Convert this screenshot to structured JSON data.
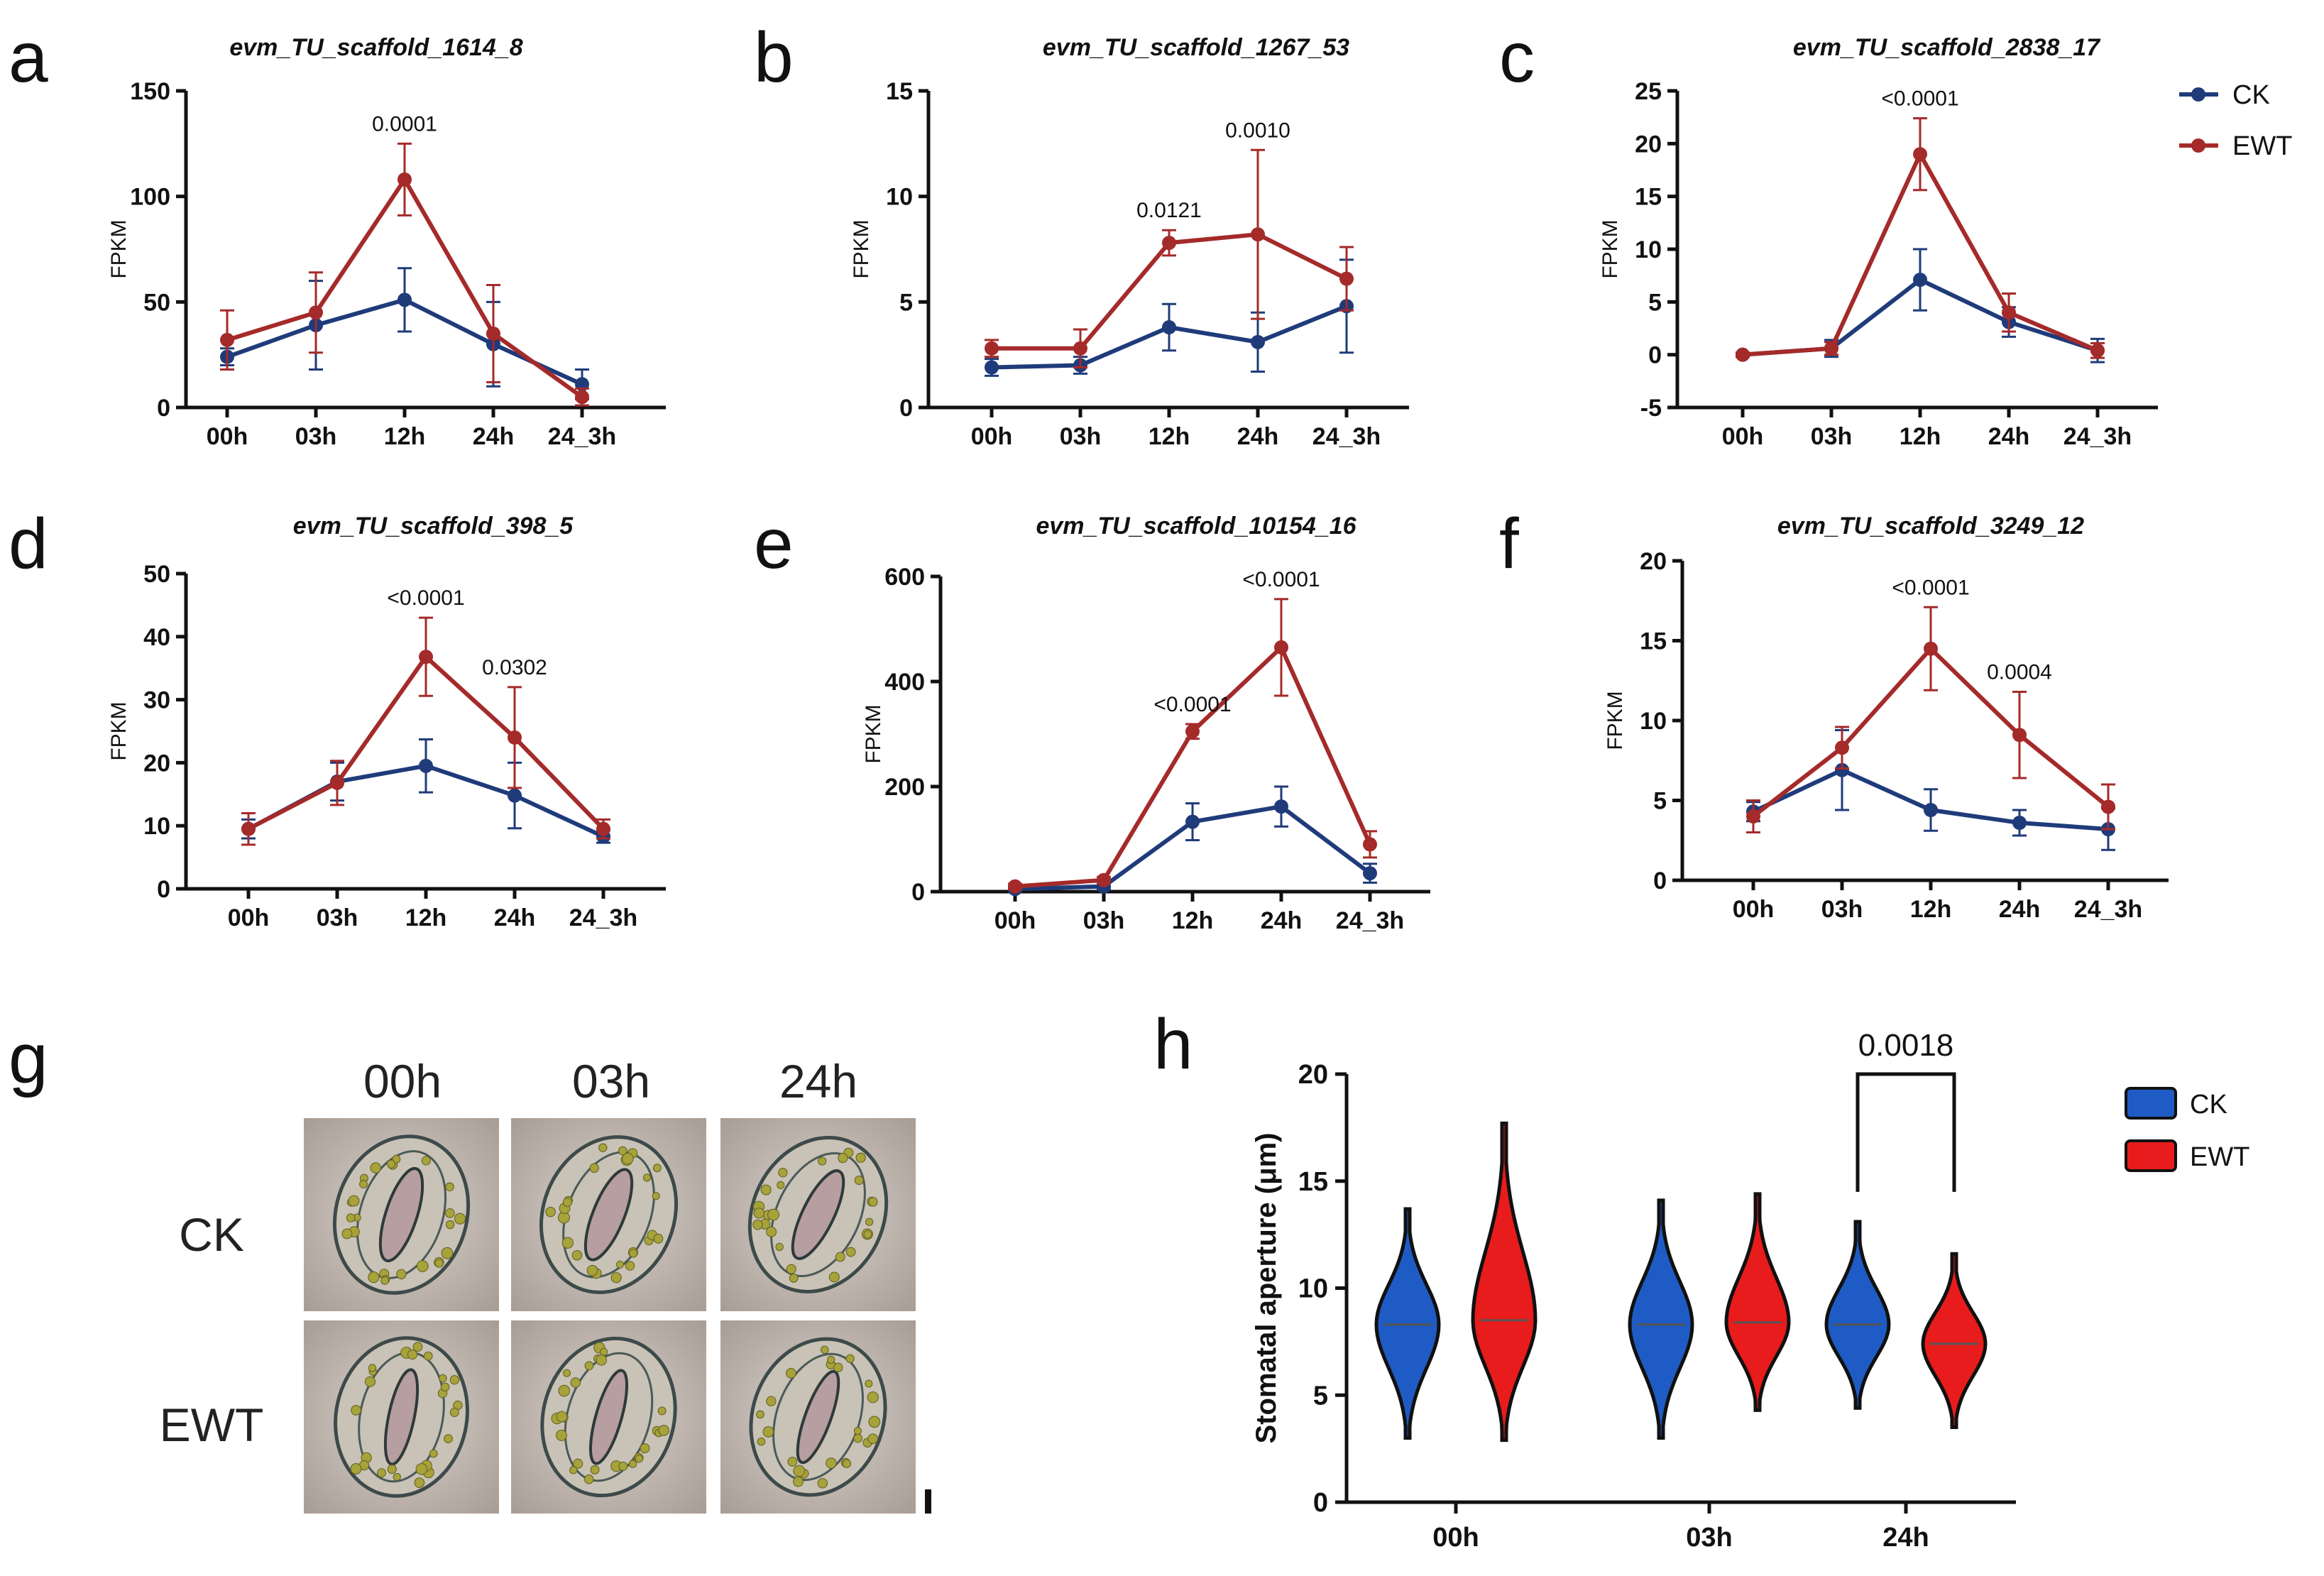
{
  "colors": {
    "ck": "#1f3b7a",
    "ewt": "#a52a2a",
    "violin_ck": "#1f5bc4",
    "violin_ewt": "#e81c1c"
  },
  "legend_top": [
    {
      "label": "CK"
    },
    {
      "label": "EWT"
    }
  ],
  "legend_h": [
    {
      "label": "CK"
    },
    {
      "label": "EWT"
    }
  ],
  "chart_data": [
    {
      "panel": "a",
      "type": "line",
      "title": "evm_TU_scaffold_1614_8",
      "ylabel": "FPKM",
      "categories": [
        "00h",
        "03h",
        "12h",
        "24h",
        "24_3h"
      ],
      "ylim": [
        0,
        150
      ],
      "yticks": [
        "0",
        "50",
        "100",
        "150"
      ],
      "series": [
        {
          "name": "CK",
          "values": [
            24,
            39,
            51,
            30,
            11
          ],
          "err": [
            4,
            21,
            15,
            20,
            7
          ]
        },
        {
          "name": "EWT",
          "values": [
            32,
            45,
            108,
            35,
            5
          ],
          "err": [
            14,
            19,
            17,
            23,
            4
          ]
        }
      ],
      "annotations": [
        {
          "index": 2,
          "text": "0.0001"
        }
      ]
    },
    {
      "panel": "b",
      "type": "line",
      "title": "evm_TU_scaffold_1267_53",
      "ylabel": "FPKM",
      "categories": [
        "00h",
        "03h",
        "12h",
        "24h",
        "24_3h"
      ],
      "ylim": [
        0,
        15
      ],
      "yticks": [
        "0",
        "5",
        "10",
        "15"
      ],
      "series": [
        {
          "name": "CK",
          "values": [
            1.9,
            2.0,
            3.8,
            3.1,
            4.8
          ],
          "err": [
            0.4,
            0.4,
            1.1,
            1.4,
            2.2
          ]
        },
        {
          "name": "EWT",
          "values": [
            2.8,
            2.8,
            7.8,
            8.2,
            6.1
          ],
          "err": [
            0.4,
            0.9,
            0.6,
            4.0,
            1.5
          ]
        }
      ],
      "annotations": [
        {
          "index": 2,
          "text": "0.0121"
        },
        {
          "index": 3,
          "text": "0.0010"
        }
      ]
    },
    {
      "panel": "c",
      "type": "line",
      "title": "evm_TU_scaffold_2838_17",
      "ylabel": "FPKM",
      "categories": [
        "00h",
        "03h",
        "12h",
        "24h",
        "24_3h"
      ],
      "ylim": [
        -5,
        25
      ],
      "yticks": [
        "-5",
        "0",
        "5",
        "10",
        "15",
        "20",
        "25"
      ],
      "series": [
        {
          "name": "CK",
          "values": [
            0.0,
            0.6,
            7.1,
            3.1,
            0.4
          ],
          "err": [
            0.2,
            0.8,
            2.9,
            1.4,
            1.1
          ]
        },
        {
          "name": "EWT",
          "values": [
            0.0,
            0.6,
            19.0,
            4.0,
            0.4
          ],
          "err": [
            0.2,
            0.6,
            3.4,
            1.8,
            0.7
          ]
        }
      ],
      "annotations": [
        {
          "index": 2,
          "text": "<0.0001"
        }
      ]
    },
    {
      "panel": "d",
      "type": "line",
      "title": "evm_TU_scaffold_398_5",
      "ylabel": "FPKM",
      "categories": [
        "00h",
        "03h",
        "12h",
        "24h",
        "24_3h"
      ],
      "ylim": [
        0,
        50
      ],
      "yticks": [
        "0",
        "10",
        "20",
        "30",
        "40",
        "50"
      ],
      "series": [
        {
          "name": "CK",
          "values": [
            9.5,
            17.0,
            19.5,
            14.8,
            8.3
          ],
          "err": [
            1.5,
            3.0,
            4.2,
            5.2,
            1.0
          ]
        },
        {
          "name": "EWT",
          "values": [
            9.5,
            16.8,
            36.8,
            24.0,
            9.5
          ],
          "err": [
            2.5,
            3.5,
            6.2,
            8.0,
            1.5
          ]
        }
      ],
      "annotations": [
        {
          "index": 2,
          "text": "<0.0001"
        },
        {
          "index": 3,
          "text": "0.0302"
        }
      ]
    },
    {
      "panel": "e",
      "type": "line",
      "title": "evm_TU_scaffold_10154_16",
      "ylabel": "FPKM",
      "categories": [
        "00h",
        "03h",
        "12h",
        "24h",
        "24_3h"
      ],
      "ylim": [
        0,
        600
      ],
      "yticks": [
        "0",
        "200",
        "400",
        "600"
      ],
      "series": [
        {
          "name": "CK",
          "values": [
            5,
            10,
            133,
            162,
            35
          ],
          "err": [
            4,
            6,
            35,
            38,
            18
          ]
        },
        {
          "name": "EWT",
          "values": [
            10,
            22,
            305,
            465,
            90
          ],
          "err": [
            5,
            6,
            14,
            92,
            25
          ]
        }
      ],
      "annotations": [
        {
          "index": 2,
          "text": "<0.0001"
        },
        {
          "index": 3,
          "text": "<0.0001"
        }
      ]
    },
    {
      "panel": "f",
      "type": "line",
      "title": "evm_TU_scaffold_3249_12",
      "ylabel": "FPKM",
      "categories": [
        "00h",
        "03h",
        "12h",
        "24h",
        "24_3h"
      ],
      "ylim": [
        0,
        20
      ],
      "yticks": [
        "0",
        "5",
        "10",
        "15",
        "20"
      ],
      "series": [
        {
          "name": "CK",
          "values": [
            4.3,
            6.9,
            4.4,
            3.6,
            3.2
          ],
          "err": [
            0.6,
            2.5,
            1.3,
            0.8,
            1.3
          ]
        },
        {
          "name": "EWT",
          "values": [
            4.0,
            8.3,
            14.5,
            9.1,
            4.6
          ],
          "err": [
            1.0,
            1.3,
            2.6,
            2.7,
            1.4
          ]
        }
      ],
      "annotations": [
        {
          "index": 2,
          "text": "<0.0001"
        },
        {
          "index": 3,
          "text": "0.0004"
        }
      ]
    },
    {
      "panel": "h",
      "type": "violin",
      "title": "",
      "ylabel": "Stomatal aperture (μm)",
      "categories": [
        "00h",
        "03h",
        "24h"
      ],
      "ylim": [
        0,
        20
      ],
      "yticks": [
        "0",
        "5",
        "10",
        "15",
        "20"
      ],
      "series": [
        {
          "name": "CK",
          "median": [
            8.3,
            8.3,
            8.3
          ],
          "min": [
            3.0,
            3.0,
            4.4
          ],
          "max": [
            13.7,
            14.1,
            13.1
          ]
        },
        {
          "name": "EWT",
          "median": [
            8.5,
            8.4,
            7.4
          ],
          "min": [
            2.9,
            4.3,
            3.5
          ],
          "max": [
            17.7,
            14.4,
            11.6
          ]
        }
      ],
      "bracket": {
        "group": 2,
        "text": "0.0018"
      }
    }
  ],
  "micrograph": {
    "columns": [
      {
        "label": "00h"
      },
      {
        "label": "03h"
      },
      {
        "label": "24h"
      }
    ],
    "rows": [
      {
        "label": "CK"
      },
      {
        "label": "EWT"
      }
    ]
  }
}
